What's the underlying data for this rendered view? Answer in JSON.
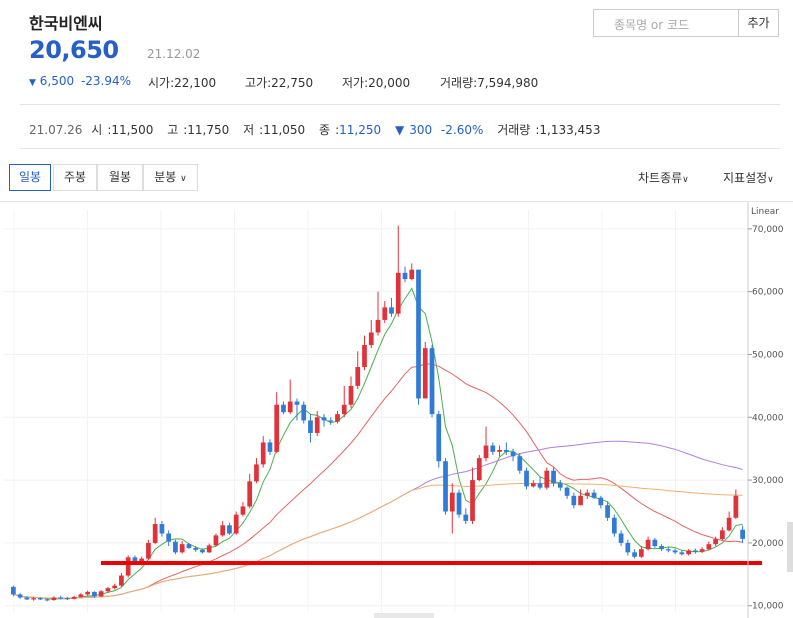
{
  "stock": {
    "name": "한국비엔씨",
    "price": "20,650",
    "date": "21.12.02"
  },
  "change": {
    "arrow": "▼",
    "amount": "6,500",
    "percent": "-23.94%"
  },
  "stats": {
    "open_label": "시가",
    "open": "22,100",
    "high_label": "고가",
    "high": "22,750",
    "low_label": "저가",
    "low": "20,000",
    "volume_label": "거래량",
    "volume": "7,594,980"
  },
  "search": {
    "placeholder": "종목명 or 코드",
    "add_label": "추가"
  },
  "previous": {
    "date": "21.07.26",
    "open_label": "시",
    "open": "11,500",
    "high_label": "고",
    "high": "11,750",
    "low_label": "저",
    "low": "11,050",
    "close_label": "종",
    "close": "11,250",
    "change_arrow": "▼",
    "change": "300",
    "percent": "-2.60%",
    "volume_label": "거래량",
    "volume": "1,133,453"
  },
  "tabs": [
    "일봉",
    "주봉",
    "월봉",
    "분봉"
  ],
  "menu": {
    "chart_type": "차트종류",
    "indicator": "지표설정"
  },
  "icons": {
    "dropdown": "chevron-down-icon"
  },
  "colors": {
    "up": "#e0323a",
    "down": "#2f7bd6",
    "accent": "#2460c7",
    "ma5": "#4caf50",
    "ma20": "#e06666",
    "ma60": "#b57edc",
    "ma120": "#f0b070",
    "support_line": "#ee0000"
  },
  "chart_data": {
    "type": "candlestick",
    "scale_label": "Linear",
    "y_ticks": [
      10000,
      20000,
      30000,
      40000,
      50000,
      60000,
      70000
    ],
    "y_tick_labels": [
      "10,000",
      "20,000",
      "30,000",
      "40,000",
      "50,000",
      "60,000",
      "70,000"
    ],
    "ylim": [
      9000,
      73000
    ],
    "support_level": 16800,
    "candles": [
      [
        13000,
        11800,
        13200,
        11500
      ],
      [
        11800,
        11300,
        12000,
        11100
      ],
      [
        11300,
        11000,
        11500,
        10900
      ],
      [
        11000,
        11200,
        11400,
        10800
      ],
      [
        11200,
        11000,
        11300,
        10900
      ],
      [
        11000,
        10900,
        11200,
        10700
      ],
      [
        10900,
        11300,
        11500,
        10800
      ],
      [
        11300,
        11200,
        11600,
        11000
      ],
      [
        11200,
        11100,
        11400,
        10900
      ],
      [
        11100,
        11400,
        11600,
        11000
      ],
      [
        11400,
        11800,
        12000,
        11300
      ],
      [
        11800,
        12200,
        12400,
        11600
      ],
      [
        12200,
        11500,
        12300,
        11300
      ],
      [
        11500,
        12300,
        12500,
        11400
      ],
      [
        12300,
        12800,
        13000,
        12100
      ],
      [
        12800,
        13200,
        13500,
        12600
      ],
      [
        13200,
        14800,
        15200,
        13000
      ],
      [
        14800,
        17700,
        18000,
        14500
      ],
      [
        17700,
        16800,
        18000,
        16500
      ],
      [
        16800,
        17500,
        17800,
        16400
      ],
      [
        17500,
        20000,
        20500,
        17300
      ],
      [
        20000,
        23000,
        24000,
        19800
      ],
      [
        23000,
        21500,
        23500,
        21000
      ],
      [
        21500,
        20200,
        22000,
        19500
      ],
      [
        20200,
        18500,
        20500,
        18200
      ],
      [
        18500,
        19800,
        20300,
        18300
      ],
      [
        19800,
        19200,
        20000,
        19000
      ],
      [
        19200,
        18900,
        19500,
        18600
      ],
      [
        18900,
        18500,
        19100,
        18300
      ],
      [
        18500,
        19600,
        19900,
        18400
      ],
      [
        19600,
        21200,
        21500,
        19400
      ],
      [
        21200,
        22800,
        23500,
        21000
      ],
      [
        22800,
        21500,
        23200,
        21300
      ],
      [
        21500,
        24500,
        25000,
        21300
      ],
      [
        24500,
        25800,
        26500,
        24200
      ],
      [
        25800,
        29800,
        31000,
        25500
      ],
      [
        29800,
        32500,
        33500,
        29500
      ],
      [
        32500,
        36000,
        37000,
        32000
      ],
      [
        36000,
        34500,
        36500,
        34000
      ],
      [
        34500,
        42000,
        44000,
        34300
      ],
      [
        42000,
        40800,
        42500,
        40500
      ],
      [
        40800,
        42500,
        46000,
        40500
      ],
      [
        42500,
        42000,
        43000,
        39500
      ],
      [
        42000,
        39500,
        42500,
        39000
      ],
      [
        39500,
        37500,
        40500,
        36000
      ],
      [
        37500,
        40000,
        41000,
        37000
      ],
      [
        40000,
        39500,
        40500,
        38500
      ],
      [
        39500,
        39300,
        40000,
        38800
      ],
      [
        39300,
        40500,
        41000,
        39000
      ],
      [
        40500,
        42000,
        45000,
        40000
      ],
      [
        42000,
        45000,
        46500,
        41500
      ],
      [
        45000,
        48000,
        50500,
        44500
      ],
      [
        48000,
        51500,
        53000,
        47500
      ],
      [
        51500,
        53500,
        55500,
        51000
      ],
      [
        53500,
        55500,
        60000,
        53000
      ],
      [
        55500,
        57500,
        58500,
        55000
      ],
      [
        57500,
        56500,
        59000,
        56000
      ],
      [
        56500,
        63000,
        70500,
        56000
      ],
      [
        63000,
        62000,
        64000,
        61500
      ],
      [
        62000,
        63500,
        64500,
        61800
      ],
      [
        63500,
        43000,
        63500,
        42000
      ],
      [
        43000,
        51000,
        52000,
        43000
      ],
      [
        51000,
        40500,
        51500,
        40000
      ],
      [
        40500,
        33000,
        41000,
        32000
      ],
      [
        33000,
        25000,
        33500,
        24500
      ],
      [
        25000,
        28000,
        29500,
        21500
      ],
      [
        28000,
        24500,
        28500,
        24000
      ],
      [
        24500,
        23500,
        25500,
        23000
      ],
      [
        23500,
        30000,
        32000,
        23000
      ],
      [
        30000,
        33500,
        34000,
        29800
      ],
      [
        33500,
        35500,
        38500,
        33000
      ],
      [
        35500,
        34500,
        36000,
        34000
      ],
      [
        34500,
        34800,
        35500,
        33800
      ],
      [
        34800,
        34500,
        36000,
        34000
      ],
      [
        34500,
        33800,
        35000,
        33000
      ],
      [
        33800,
        31500,
        34300,
        31000
      ],
      [
        31500,
        29000,
        32000,
        28500
      ],
      [
        29000,
        29500,
        30000,
        28800
      ],
      [
        29500,
        28800,
        30500,
        28500
      ],
      [
        28800,
        31500,
        32000,
        28500
      ],
      [
        31500,
        29500,
        32000,
        29000
      ],
      [
        29500,
        28800,
        30000,
        28300
      ],
      [
        28800,
        27500,
        29000,
        27000
      ],
      [
        27500,
        26000,
        28000,
        25500
      ],
      [
        26000,
        27500,
        28500,
        26000
      ],
      [
        27500,
        28000,
        28500,
        27000
      ],
      [
        28000,
        27200,
        28500,
        27000
      ],
      [
        27200,
        26000,
        27500,
        25500
      ],
      [
        26000,
        24000,
        26500,
        23500
      ],
      [
        24000,
        21500,
        24500,
        21000
      ],
      [
        21500,
        20000,
        22000,
        19500
      ],
      [
        20000,
        18500,
        20500,
        18000
      ],
      [
        18500,
        17800,
        19000,
        17500
      ],
      [
        17800,
        19000,
        19500,
        17600
      ],
      [
        19000,
        20500,
        21000,
        18800
      ],
      [
        20500,
        19500,
        20800,
        19200
      ],
      [
        19500,
        19000,
        19800,
        18700
      ],
      [
        19000,
        18800,
        19300,
        18500
      ],
      [
        18800,
        18500,
        19100,
        18200
      ],
      [
        18500,
        18200,
        18800,
        18000
      ],
      [
        18200,
        18800,
        19000,
        18000
      ],
      [
        18800,
        18600,
        19100,
        18300
      ],
      [
        18600,
        19000,
        19300,
        18400
      ],
      [
        19000,
        19800,
        20200,
        18800
      ],
      [
        19800,
        20600,
        21000,
        19500
      ],
      [
        20600,
        22000,
        22500,
        20400
      ],
      [
        22000,
        24000,
        25000,
        21800
      ],
      [
        24000,
        27500,
        28500,
        23800
      ],
      [
        22100,
        20650,
        22750,
        20000
      ]
    ]
  }
}
